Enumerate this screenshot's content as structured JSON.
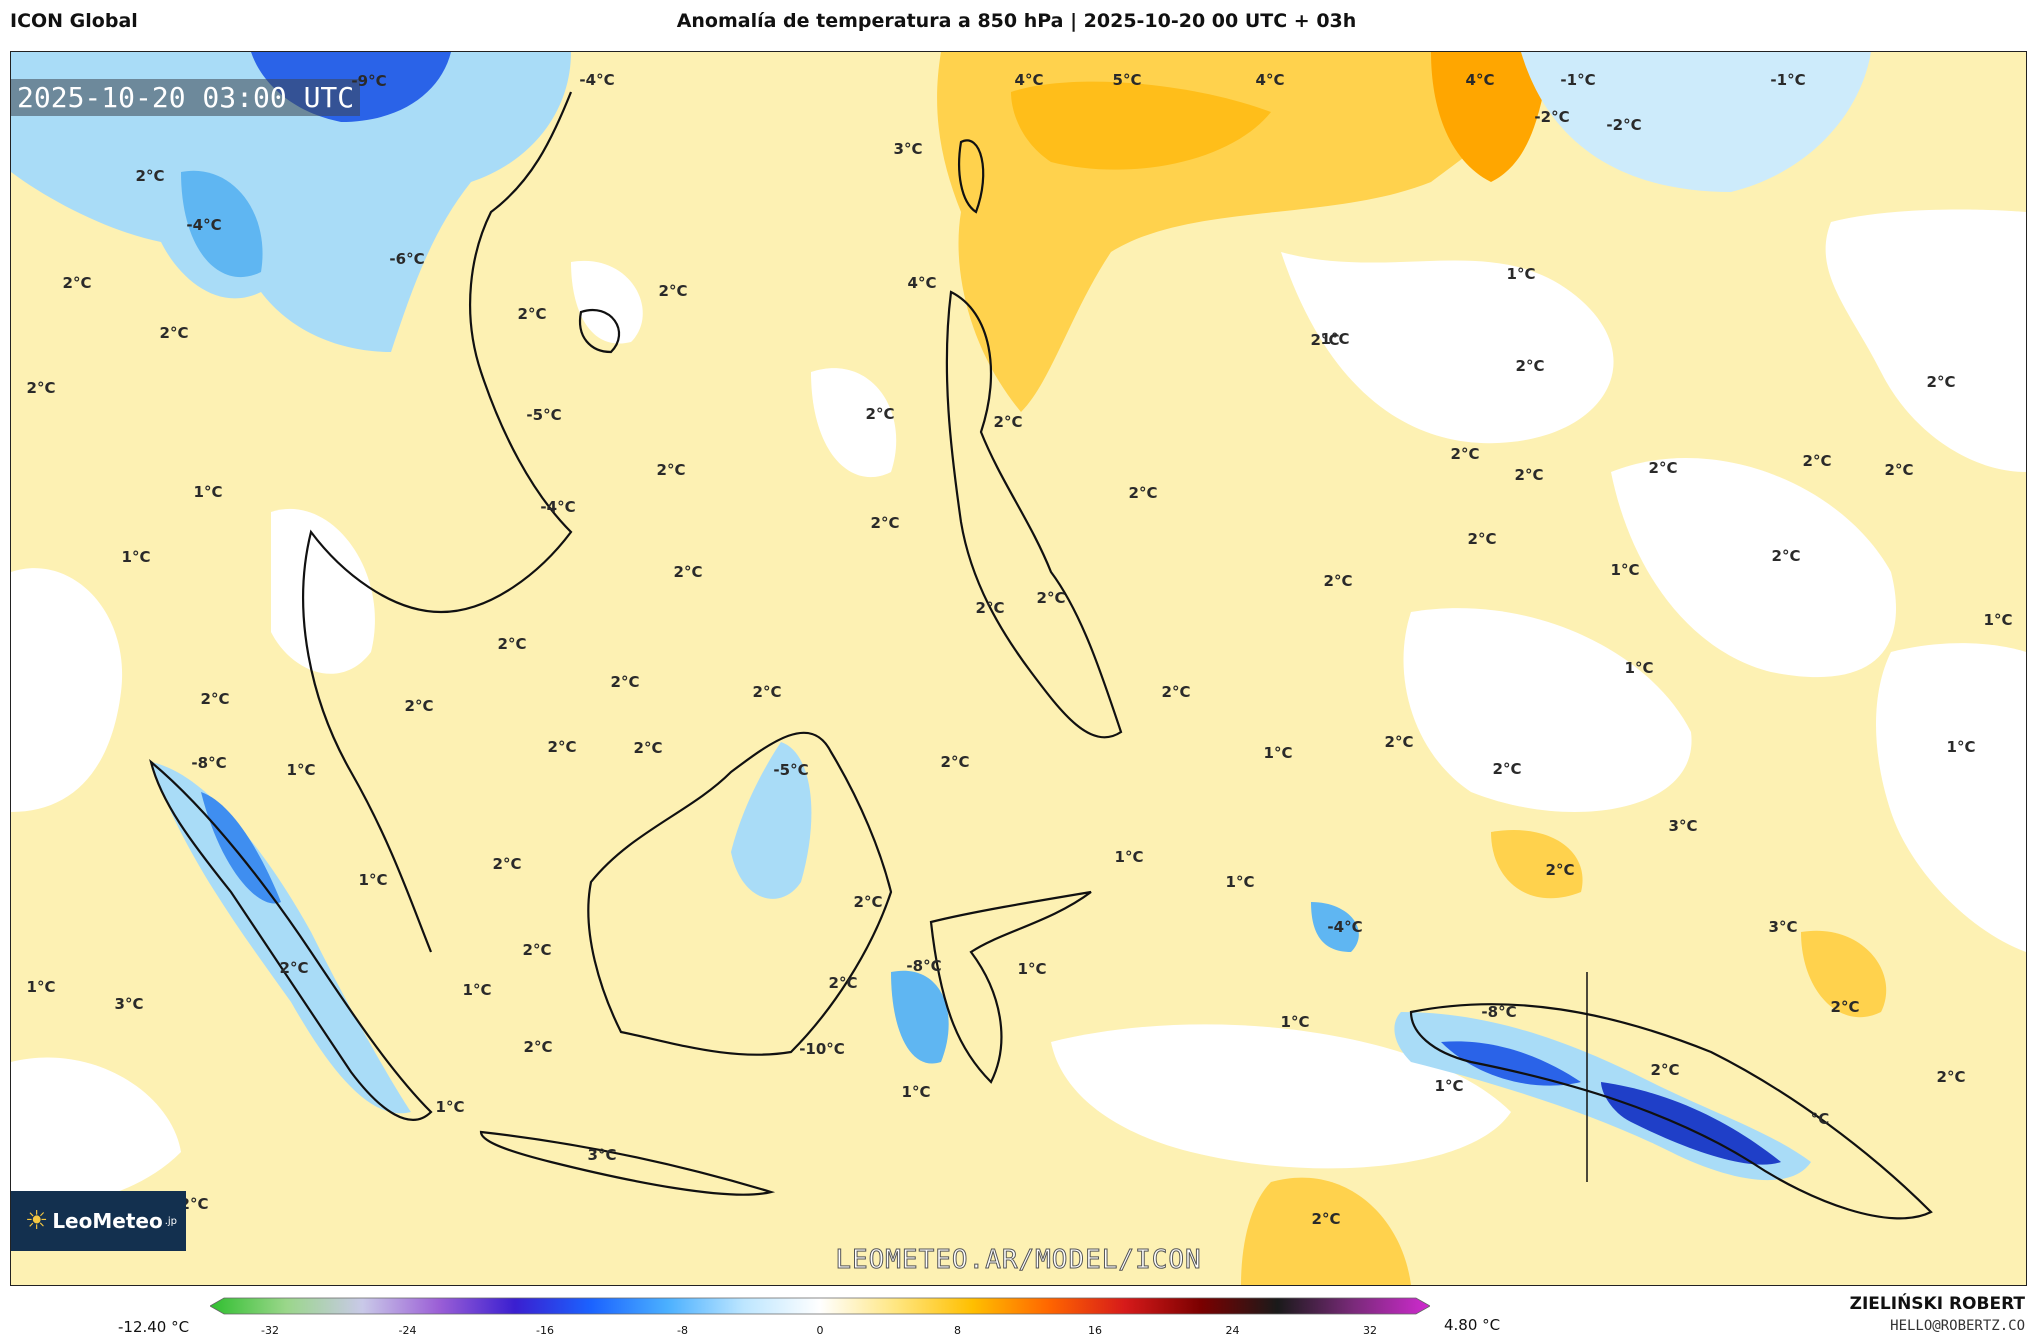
{
  "header": {
    "model": "ICON Global",
    "title": "Anomalía de temperatura a 850 hPa | 2025-10-20 00 UTC + 03h"
  },
  "map": {
    "timestamp": "2025-10-20 03:00 UTC",
    "watermark": "LEOMETEO.AR/MODEL/ICON",
    "logo": {
      "brand": "LeoMeteo",
      "suffix": ".jp"
    },
    "contour_labels": [
      "-9°C",
      "-4°C",
      "4°C",
      "5°C",
      "4°C",
      "4°C",
      "-1°C",
      "-1°C",
      "-2°C",
      "-2°C",
      "2°C",
      "-4°C",
      "2°C",
      "2°C",
      "2°C",
      "2°C",
      "3°C",
      "4°C",
      "1°C",
      "2°C",
      "2°C",
      "-6°C",
      "-5°C",
      "-4°C",
      "2°C",
      "2°C",
      "2°C",
      "2°C",
      "2°C",
      "2°C",
      "2°C",
      "2°C",
      "1°C",
      "1°C",
      "2°C",
      "2°C",
      "2°C",
      "2°C",
      "1°C",
      "2°C",
      "2°C",
      "2°C",
      "2°C",
      "1°C",
      "2°C",
      "2°C",
      "2°C",
      "2°C",
      "2°C",
      "2°C",
      "1°C",
      "1°C",
      "2°C",
      "2°C",
      "-8°C",
      "1°C",
      "2°C",
      "2°C",
      "-5°C",
      "2°C",
      "1°C",
      "2°C",
      "2°C",
      "1°C",
      "3°C",
      "2°C",
      "1°C",
      "1°C",
      "2°C",
      "1°C",
      "-4°C",
      "2°C",
      "2°C",
      "3°C",
      "2°C",
      "1°C",
      "3°C",
      "-8°C",
      "1°C",
      "2°C",
      "1°C",
      "-8°C",
      "1°C",
      "2°C",
      "2°C",
      "-10°C",
      "2°C",
      "1°C",
      "1°C",
      "2°C",
      "1°C",
      "3°C",
      "2°C",
      "°C",
      "2°C"
    ]
  },
  "colorbar": {
    "min_label": "-12.40 °C",
    "max_label": "4.80 °C",
    "ticks": [
      "-32",
      "-24",
      "-16",
      "-8",
      "0",
      "8",
      "16",
      "24",
      "32"
    ],
    "colors": [
      "#2fbf2f",
      "#9ad68a",
      "#c9c9e8",
      "#9b5fd6",
      "#3a1fd0",
      "#1b63ff",
      "#4bb0ff",
      "#bde6ff",
      "#ffffff",
      "#ffe680",
      "#ffbf00",
      "#ff6600",
      "#d61a1a",
      "#7a0000",
      "#1a1a1a",
      "#7a2a7a",
      "#d02ad0"
    ]
  },
  "footer": {
    "author": "ZIELIŃSKI ROBERT",
    "email": "HELLO@ROBERTZ.CO"
  }
}
